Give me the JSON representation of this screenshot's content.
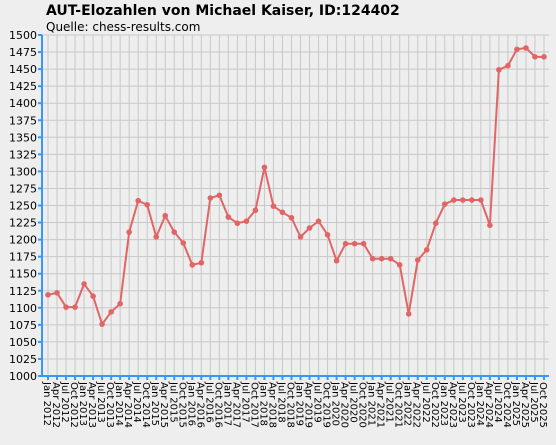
{
  "chart_data": {
    "type": "line",
    "title": "AUT-Elozahlen von Michael Kaiser, ID:124402",
    "subtitle": "Quelle: chess-results.com",
    "categories": [
      "Jan 2012",
      "Apr 2012",
      "Jul 2012",
      "Oct 2012",
      "Jan 2013",
      "Apr 2013",
      "Jul 2013",
      "Oct 2013",
      "Jan 2014",
      "Apr 2014",
      "Jul 2014",
      "Oct 2014",
      "Jan 2015",
      "Apr 2015",
      "Jul 2015",
      "Oct 2015",
      "Jan 2016",
      "Apr 2016",
      "Jul 2016",
      "Oct 2016",
      "Jan 2017",
      "Apr 2017",
      "Jul 2017",
      "Oct 2017",
      "Jan 2018",
      "Apr 2018",
      "Jul 2018",
      "Oct 2018",
      "Jan 2019",
      "Apr 2019",
      "Jul 2019",
      "Oct 2019",
      "Jan 2020",
      "Apr 2020",
      "Jul 2020",
      "Oct 2020",
      "Jan 2021",
      "Apr 2021",
      "Jul 2021",
      "Oct 2021",
      "Jan 2022",
      "Apr 2022",
      "Jul 2022",
      "Oct 2022",
      "Jan 2023",
      "Apr 2023",
      "Jul 2023",
      "Oct 2023",
      "Jan 2024",
      "Apr 2024",
      "Jul 2024",
      "Oct 2024",
      "Jan 2025",
      "Apr 2025",
      "Jul 2025",
      "Oct 2025"
    ],
    "values": [
      1119,
      1122,
      1101,
      1101,
      1135,
      1117,
      1076,
      1094,
      1106,
      1211,
      1257,
      1251,
      1204,
      1235,
      1211,
      1195,
      1163,
      1166,
      1261,
      1265,
      1233,
      1224,
      1227,
      1243,
      1306,
      1249,
      1240,
      1232,
      1204,
      1217,
      1227,
      1207,
      1169,
      1194,
      1194,
      1194,
      1172,
      1172,
      1172,
      1163,
      1091,
      1170,
      1185,
      1224,
      1252,
      1258,
      1258,
      1258,
      1258,
      1221,
      1449,
      1455,
      1479,
      1481,
      1468,
      1468
    ],
    "color": "#e06666",
    "ylim": [
      1000,
      1500
    ],
    "yticks": [
      1000,
      1025,
      1050,
      1075,
      1100,
      1125,
      1150,
      1175,
      1200,
      1225,
      1250,
      1275,
      1300,
      1325,
      1350,
      1375,
      1400,
      1425,
      1450,
      1475,
      1500
    ],
    "grid": true
  }
}
